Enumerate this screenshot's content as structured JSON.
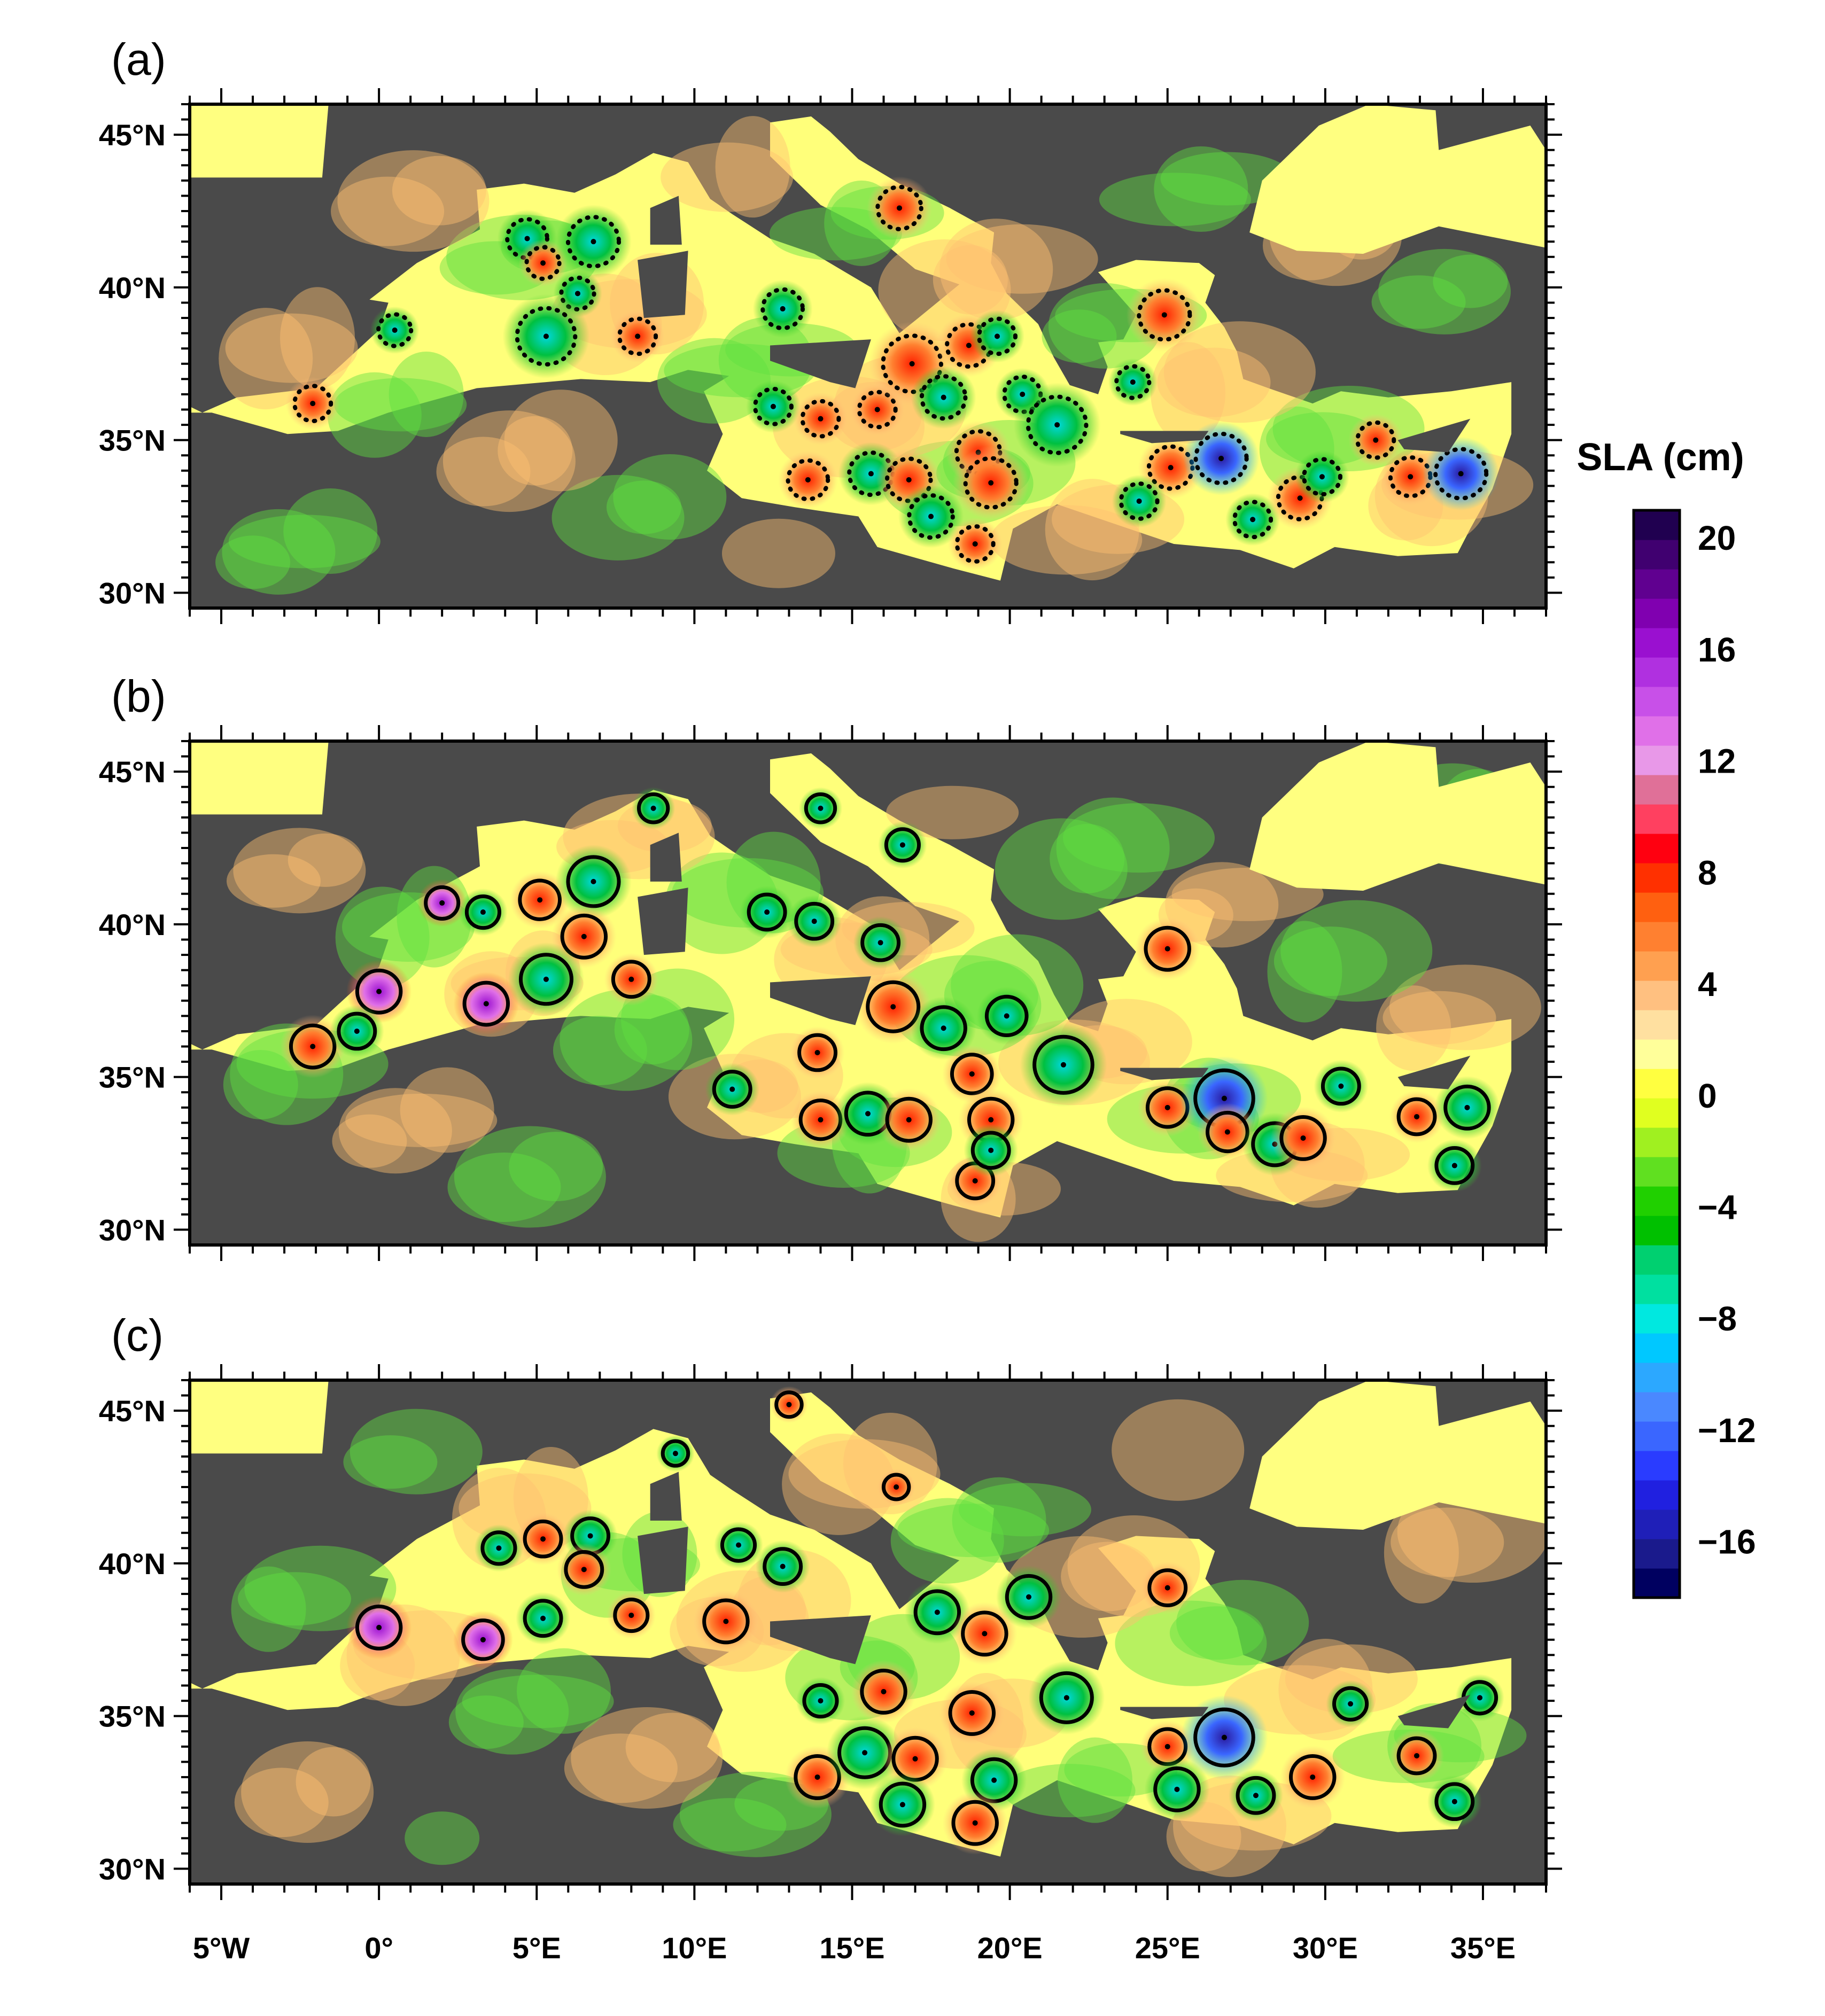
{
  "panels": [
    {
      "label": "(a)",
      "style": "dotted"
    },
    {
      "label": "(b)",
      "style": "solid"
    },
    {
      "label": "(c)",
      "style": "solid"
    }
  ],
  "axes": {
    "x_ticks": [
      "5°W",
      "0°",
      "5°E",
      "10°E",
      "15°E",
      "20°E",
      "25°E",
      "30°E",
      "35°E"
    ],
    "y_ticks": [
      "30°N",
      "35°N",
      "40°N",
      "45°N"
    ],
    "lon_range": [
      -6,
      37
    ],
    "lat_range": [
      29.5,
      46
    ]
  },
  "colorbar": {
    "title": "SLA (cm)",
    "tick_labels": [
      "20",
      "16",
      "12",
      "8",
      "4",
      "0",
      "−4",
      "−8",
      "−12",
      "−16"
    ],
    "tick_values": [
      20,
      16,
      12,
      8,
      4,
      0,
      -4,
      -8,
      -12,
      -16
    ],
    "range": [
      -18,
      21
    ],
    "colors": [
      "#000060",
      "#1a1a8c",
      "#1f1fb8",
      "#2020e0",
      "#2a3cff",
      "#3a66ff",
      "#4a88ff",
      "#2ca8ff",
      "#00c8ff",
      "#00e8e0",
      "#00e0a0",
      "#00d070",
      "#00c000",
      "#20d000",
      "#60e020",
      "#a0f020",
      "#e0ff20",
      "#ffff40",
      "#ffff9a",
      "#ffe0a0",
      "#ffc080",
      "#ffa050",
      "#ff8030",
      "#ff6010",
      "#ff3000",
      "#ff0010",
      "#ff4060",
      "#e07098",
      "#e898e8",
      "#e070e8",
      "#c850e8",
      "#b030e0",
      "#9a10d0",
      "#8000b0",
      "#600090",
      "#400070",
      "#200050"
    ],
    "colors_note": "bottom to top"
  },
  "eddies": [
    [
      {
        "lon": 0.5,
        "lat": 38.6,
        "r": 0.45,
        "sign": "neg"
      },
      {
        "lon": 4.7,
        "lat": 41.6,
        "r": 0.55,
        "sign": "neg"
      },
      {
        "lon": 5.2,
        "lat": 40.8,
        "r": 0.45,
        "sign": "pos"
      },
      {
        "lon": 6.8,
        "lat": 41.5,
        "r": 0.7,
        "sign": "neg"
      },
      {
        "lon": 6.3,
        "lat": 39.8,
        "r": 0.45,
        "sign": "neg"
      },
      {
        "lon": 5.3,
        "lat": 38.4,
        "r": 0.8,
        "sign": "neg"
      },
      {
        "lon": 8.2,
        "lat": 38.4,
        "r": 0.5,
        "sign": "pos"
      },
      {
        "lon": 16.5,
        "lat": 42.6,
        "r": 0.6,
        "sign": "pos"
      },
      {
        "lon": 12.8,
        "lat": 39.3,
        "r": 0.55,
        "sign": "neg"
      },
      {
        "lon": -2.1,
        "lat": 36.2,
        "r": 0.5,
        "sign": "pos"
      },
      {
        "lon": 12.5,
        "lat": 36.1,
        "r": 0.5,
        "sign": "neg"
      },
      {
        "lon": 14.0,
        "lat": 35.7,
        "r": 0.5,
        "sign": "pos"
      },
      {
        "lon": 15.8,
        "lat": 36.0,
        "r": 0.5,
        "sign": "pos"
      },
      {
        "lon": 16.9,
        "lat": 37.5,
        "r": 0.8,
        "sign": "pos"
      },
      {
        "lon": 17.9,
        "lat": 36.4,
        "r": 0.6,
        "sign": "neg"
      },
      {
        "lon": 18.7,
        "lat": 38.1,
        "r": 0.6,
        "sign": "pos"
      },
      {
        "lon": 19.6,
        "lat": 38.4,
        "r": 0.5,
        "sign": "neg"
      },
      {
        "lon": 19.0,
        "lat": 34.6,
        "r": 0.6,
        "sign": "pos"
      },
      {
        "lon": 20.4,
        "lat": 36.5,
        "r": 0.5,
        "sign": "neg"
      },
      {
        "lon": 21.5,
        "lat": 35.5,
        "r": 0.8,
        "sign": "neg"
      },
      {
        "lon": 13.6,
        "lat": 33.7,
        "r": 0.55,
        "sign": "pos"
      },
      {
        "lon": 15.6,
        "lat": 33.9,
        "r": 0.6,
        "sign": "neg"
      },
      {
        "lon": 16.8,
        "lat": 33.7,
        "r": 0.6,
        "sign": "pos"
      },
      {
        "lon": 17.5,
        "lat": 32.5,
        "r": 0.6,
        "sign": "neg"
      },
      {
        "lon": 19.4,
        "lat": 33.6,
        "r": 0.7,
        "sign": "pos"
      },
      {
        "lon": 18.9,
        "lat": 31.6,
        "r": 0.5,
        "sign": "pos"
      },
      {
        "lon": 24.9,
        "lat": 39.1,
        "r": 0.7,
        "sign": "pos"
      },
      {
        "lon": 23.9,
        "lat": 36.9,
        "r": 0.45,
        "sign": "neg"
      },
      {
        "lon": 25.1,
        "lat": 34.1,
        "r": 0.6,
        "sign": "pos"
      },
      {
        "lon": 26.7,
        "lat": 34.4,
        "r": 0.7,
        "sign": "neg"
      },
      {
        "lon": 24.1,
        "lat": 33.0,
        "r": 0.5,
        "sign": "neg"
      },
      {
        "lon": 27.7,
        "lat": 32.4,
        "r": 0.5,
        "sign": "neg"
      },
      {
        "lon": 29.2,
        "lat": 33.1,
        "r": 0.6,
        "sign": "pos"
      },
      {
        "lon": 29.9,
        "lat": 33.8,
        "r": 0.5,
        "sign": "neg"
      },
      {
        "lon": 31.6,
        "lat": 35.0,
        "r": 0.5,
        "sign": "pos"
      },
      {
        "lon": 32.7,
        "lat": 33.8,
        "r": 0.55,
        "sign": "pos"
      },
      {
        "lon": 34.3,
        "lat": 33.9,
        "r": 0.7,
        "sign": "neg"
      }
    ],
    [
      {
        "lon": 0.0,
        "lat": 37.8,
        "r": 0.6,
        "sign": "pos"
      },
      {
        "lon": 3.4,
        "lat": 37.4,
        "r": 0.6,
        "sign": "pos"
      },
      {
        "lon": -2.1,
        "lat": 36.0,
        "r": 0.6,
        "sign": "pos"
      },
      {
        "lon": -0.7,
        "lat": 36.5,
        "r": 0.5,
        "sign": "neg"
      },
      {
        "lon": 2.0,
        "lat": 40.7,
        "r": 0.45,
        "sign": "pos"
      },
      {
        "lon": 3.3,
        "lat": 40.4,
        "r": 0.45,
        "sign": "neg"
      },
      {
        "lon": 5.1,
        "lat": 40.8,
        "r": 0.55,
        "sign": "pos"
      },
      {
        "lon": 6.8,
        "lat": 41.4,
        "r": 0.7,
        "sign": "neg"
      },
      {
        "lon": 6.5,
        "lat": 39.6,
        "r": 0.6,
        "sign": "pos"
      },
      {
        "lon": 5.3,
        "lat": 38.2,
        "r": 0.7,
        "sign": "neg"
      },
      {
        "lon": 8.0,
        "lat": 38.2,
        "r": 0.5,
        "sign": "pos"
      },
      {
        "lon": 8.7,
        "lat": 43.8,
        "r": 0.4,
        "sign": "neg"
      },
      {
        "lon": 12.3,
        "lat": 40.4,
        "r": 0.5,
        "sign": "neg"
      },
      {
        "lon": 13.8,
        "lat": 40.1,
        "r": 0.5,
        "sign": "neg"
      },
      {
        "lon": 15.9,
        "lat": 39.4,
        "r": 0.5,
        "sign": "neg"
      },
      {
        "lon": 14.0,
        "lat": 43.8,
        "r": 0.4,
        "sign": "neg"
      },
      {
        "lon": 16.6,
        "lat": 42.6,
        "r": 0.45,
        "sign": "neg"
      },
      {
        "lon": 13.9,
        "lat": 35.8,
        "r": 0.5,
        "sign": "pos"
      },
      {
        "lon": 16.3,
        "lat": 37.3,
        "r": 0.7,
        "sign": "pos"
      },
      {
        "lon": 17.9,
        "lat": 36.6,
        "r": 0.6,
        "sign": "neg"
      },
      {
        "lon": 19.9,
        "lat": 37.0,
        "r": 0.55,
        "sign": "neg"
      },
      {
        "lon": 21.7,
        "lat": 35.4,
        "r": 0.8,
        "sign": "neg"
      },
      {
        "lon": 18.8,
        "lat": 35.1,
        "r": 0.55,
        "sign": "pos"
      },
      {
        "lon": 11.2,
        "lat": 34.6,
        "r": 0.5,
        "sign": "neg"
      },
      {
        "lon": 14.0,
        "lat": 33.6,
        "r": 0.55,
        "sign": "pos"
      },
      {
        "lon": 15.5,
        "lat": 33.8,
        "r": 0.6,
        "sign": "neg"
      },
      {
        "lon": 16.8,
        "lat": 33.6,
        "r": 0.6,
        "sign": "pos"
      },
      {
        "lon": 19.4,
        "lat": 33.6,
        "r": 0.6,
        "sign": "pos"
      },
      {
        "lon": 18.9,
        "lat": 31.6,
        "r": 0.5,
        "sign": "pos"
      },
      {
        "lon": 19.4,
        "lat": 32.6,
        "r": 0.5,
        "sign": "neg"
      },
      {
        "lon": 25.0,
        "lat": 39.2,
        "r": 0.6,
        "sign": "pos"
      },
      {
        "lon": 25.0,
        "lat": 34.0,
        "r": 0.55,
        "sign": "pos"
      },
      {
        "lon": 26.8,
        "lat": 34.3,
        "r": 0.8,
        "sign": "neg"
      },
      {
        "lon": 26.9,
        "lat": 33.2,
        "r": 0.55,
        "sign": "pos"
      },
      {
        "lon": 28.4,
        "lat": 32.8,
        "r": 0.6,
        "sign": "neg"
      },
      {
        "lon": 29.3,
        "lat": 33.0,
        "r": 0.6,
        "sign": "pos"
      },
      {
        "lon": 30.5,
        "lat": 34.7,
        "r": 0.5,
        "sign": "neg"
      },
      {
        "lon": 32.9,
        "lat": 33.7,
        "r": 0.5,
        "sign": "pos"
      },
      {
        "lon": 34.1,
        "lat": 32.1,
        "r": 0.5,
        "sign": "neg"
      },
      {
        "lon": 34.5,
        "lat": 34.0,
        "r": 0.6,
        "sign": "neg"
      }
    ],
    [
      {
        "lon": 0.0,
        "lat": 37.9,
        "r": 0.6,
        "sign": "pos"
      },
      {
        "lon": 3.3,
        "lat": 37.5,
        "r": 0.55,
        "sign": "pos"
      },
      {
        "lon": 3.8,
        "lat": 40.5,
        "r": 0.45,
        "sign": "neg"
      },
      {
        "lon": 5.2,
        "lat": 40.8,
        "r": 0.5,
        "sign": "pos"
      },
      {
        "lon": 6.7,
        "lat": 40.9,
        "r": 0.5,
        "sign": "neg"
      },
      {
        "lon": 6.5,
        "lat": 39.8,
        "r": 0.5,
        "sign": "pos"
      },
      {
        "lon": 5.2,
        "lat": 38.2,
        "r": 0.5,
        "sign": "neg"
      },
      {
        "lon": 8.0,
        "lat": 38.3,
        "r": 0.45,
        "sign": "pos"
      },
      {
        "lon": 9.4,
        "lat": 43.6,
        "r": 0.35,
        "sign": "neg"
      },
      {
        "lon": 13.0,
        "lat": 45.2,
        "r": 0.35,
        "sign": "pos"
      },
      {
        "lon": 11.4,
        "lat": 40.6,
        "r": 0.45,
        "sign": "neg"
      },
      {
        "lon": 12.8,
        "lat": 39.9,
        "r": 0.5,
        "sign": "neg"
      },
      {
        "lon": 11.0,
        "lat": 38.1,
        "r": 0.6,
        "sign": "pos"
      },
      {
        "lon": 16.4,
        "lat": 42.5,
        "r": 0.35,
        "sign": "pos"
      },
      {
        "lon": 17.7,
        "lat": 38.4,
        "r": 0.6,
        "sign": "neg"
      },
      {
        "lon": 19.2,
        "lat": 37.7,
        "r": 0.6,
        "sign": "pos"
      },
      {
        "lon": 20.6,
        "lat": 38.9,
        "r": 0.6,
        "sign": "neg"
      },
      {
        "lon": 21.8,
        "lat": 35.6,
        "r": 0.7,
        "sign": "neg"
      },
      {
        "lon": 18.8,
        "lat": 35.1,
        "r": 0.6,
        "sign": "pos"
      },
      {
        "lon": 16.0,
        "lat": 35.8,
        "r": 0.6,
        "sign": "pos"
      },
      {
        "lon": 14.0,
        "lat": 35.5,
        "r": 0.45,
        "sign": "neg"
      },
      {
        "lon": 13.9,
        "lat": 33.0,
        "r": 0.6,
        "sign": "pos"
      },
      {
        "lon": 15.4,
        "lat": 33.8,
        "r": 0.7,
        "sign": "neg"
      },
      {
        "lon": 17.0,
        "lat": 33.6,
        "r": 0.6,
        "sign": "pos"
      },
      {
        "lon": 19.5,
        "lat": 32.9,
        "r": 0.6,
        "sign": "neg"
      },
      {
        "lon": 18.9,
        "lat": 31.5,
        "r": 0.6,
        "sign": "pos"
      },
      {
        "lon": 16.6,
        "lat": 32.1,
        "r": 0.6,
        "sign": "neg"
      },
      {
        "lon": 25.0,
        "lat": 39.2,
        "r": 0.5,
        "sign": "pos"
      },
      {
        "lon": 25.0,
        "lat": 34.0,
        "r": 0.5,
        "sign": "pos"
      },
      {
        "lon": 26.8,
        "lat": 34.3,
        "r": 0.8,
        "sign": "neg"
      },
      {
        "lon": 25.3,
        "lat": 32.6,
        "r": 0.6,
        "sign": "neg"
      },
      {
        "lon": 27.8,
        "lat": 32.4,
        "r": 0.5,
        "sign": "neg"
      },
      {
        "lon": 29.6,
        "lat": 33.0,
        "r": 0.6,
        "sign": "pos"
      },
      {
        "lon": 30.8,
        "lat": 35.4,
        "r": 0.45,
        "sign": "neg"
      },
      {
        "lon": 32.9,
        "lat": 33.7,
        "r": 0.5,
        "sign": "pos"
      },
      {
        "lon": 34.1,
        "lat": 32.2,
        "r": 0.5,
        "sign": "neg"
      },
      {
        "lon": 34.9,
        "lat": 35.6,
        "r": 0.45,
        "sign": "neg"
      }
    ]
  ]
}
